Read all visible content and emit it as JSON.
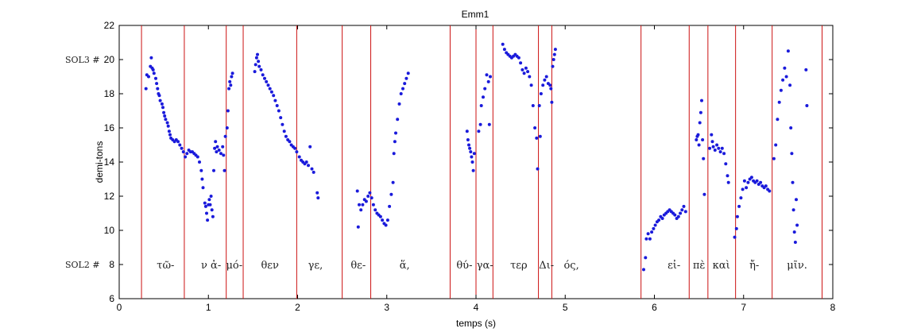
{
  "chart_data": {
    "type": "scatter",
    "title": "Emm1",
    "xlabel": "temps (s)",
    "ylabel": "demi-tons",
    "xlim": [
      0,
      8
    ],
    "ylim": [
      6,
      22
    ],
    "xticks": [
      0,
      1,
      2,
      3,
      4,
      5,
      6,
      7,
      8
    ],
    "yticks": [
      6,
      8,
      10,
      12,
      14,
      16,
      18,
      20,
      22
    ],
    "grid": false,
    "point_color": "#1a1adb",
    "line_color": "#cc1111",
    "note_markers": [
      {
        "label": "SOL3 #",
        "y": 20.0
      },
      {
        "label": "SOL2 #",
        "y": 8.0
      }
    ],
    "boundaries": [
      0.25,
      0.73,
      1.2,
      1.39,
      1.99,
      2.5,
      2.82,
      3.71,
      4.0,
      4.19,
      4.7,
      4.85,
      5.85,
      6.39,
      6.6,
      6.91,
      7.32,
      7.88
    ],
    "syllables": [
      {
        "text": "τῶ-",
        "x": 0.52
      },
      {
        "text": "ν ἀ-",
        "x": 1.03
      },
      {
        "text": "μό-",
        "x": 1.29
      },
      {
        "text": "θεν",
        "x": 1.69
      },
      {
        "text": "γε,",
        "x": 2.2
      },
      {
        "text": "θε-",
        "x": 2.68
      },
      {
        "text": "ἅ,",
        "x": 3.2
      },
      {
        "text": "θύ-",
        "x": 3.87
      },
      {
        "text": "γα-",
        "x": 4.1
      },
      {
        "text": "τερ",
        "x": 4.48
      },
      {
        "text": "Δι-",
        "x": 4.79
      },
      {
        "text": "ός,",
        "x": 5.07
      },
      {
        "text": "εἰ-",
        "x": 6.22
      },
      {
        "text": "πὲ",
        "x": 6.5
      },
      {
        "text": "καὶ",
        "x": 6.75
      },
      {
        "text": "ἤ-",
        "x": 7.12
      },
      {
        "text": "μῖν.",
        "x": 7.6
      }
    ],
    "series": [
      {
        "points": [
          [
            0.3,
            18.3
          ],
          [
            0.31,
            19.1
          ],
          [
            0.33,
            19.0
          ],
          [
            0.35,
            19.6
          ],
          [
            0.36,
            20.1
          ],
          [
            0.37,
            19.5
          ],
          [
            0.38,
            19.4
          ],
          [
            0.39,
            19.2
          ],
          [
            0.41,
            18.9
          ],
          [
            0.42,
            18.6
          ],
          [
            0.43,
            18.3
          ],
          [
            0.44,
            18.0
          ],
          [
            0.45,
            17.9
          ],
          [
            0.46,
            17.6
          ],
          [
            0.48,
            17.4
          ],
          [
            0.49,
            17.2
          ],
          [
            0.5,
            16.9
          ],
          [
            0.51,
            16.7
          ],
          [
            0.52,
            16.5
          ],
          [
            0.54,
            16.3
          ],
          [
            0.55,
            16.1
          ],
          [
            0.56,
            15.8
          ],
          [
            0.57,
            15.6
          ],
          [
            0.58,
            15.4
          ],
          [
            0.6,
            15.3
          ],
          [
            0.62,
            15.2
          ],
          [
            0.64,
            15.3
          ],
          [
            0.66,
            15.2
          ],
          [
            0.68,
            15.0
          ],
          [
            0.7,
            14.8
          ],
          [
            0.72,
            14.6
          ],
          [
            0.74,
            14.3
          ],
          [
            0.76,
            14.5
          ],
          [
            0.78,
            14.7
          ],
          [
            0.8,
            14.6
          ],
          [
            0.82,
            14.6
          ],
          [
            0.84,
            14.5
          ],
          [
            0.86,
            14.4
          ],
          [
            0.88,
            14.3
          ],
          [
            0.9,
            14.0
          ],
          [
            0.92,
            13.5
          ],
          [
            0.93,
            13.0
          ],
          [
            0.94,
            12.5
          ]
        ]
      },
      {
        "points": [
          [
            0.96,
            11.6
          ],
          [
            0.97,
            11.4
          ],
          [
            0.98,
            11.0
          ],
          [
            0.99,
            10.6
          ],
          [
            1.0,
            11.5
          ],
          [
            1.01,
            11.8
          ],
          [
            1.02,
            11.5
          ],
          [
            1.03,
            12.0
          ],
          [
            1.04,
            11.2
          ],
          [
            1.05,
            10.8
          ],
          [
            1.06,
            13.5
          ],
          [
            1.07,
            14.8
          ],
          [
            1.08,
            15.2
          ],
          [
            1.09,
            14.6
          ],
          [
            1.1,
            14.9
          ],
          [
            1.12,
            14.7
          ],
          [
            1.14,
            14.5
          ],
          [
            1.16,
            14.9
          ],
          [
            1.17,
            14.4
          ],
          [
            1.18,
            13.5
          ],
          [
            1.19,
            15.5
          ]
        ]
      },
      {
        "points": [
          [
            1.21,
            16.0
          ],
          [
            1.22,
            17.0
          ],
          [
            1.23,
            18.3
          ],
          [
            1.24,
            18.7
          ],
          [
            1.25,
            18.5
          ],
          [
            1.26,
            19.0
          ],
          [
            1.27,
            19.2
          ]
        ]
      },
      {
        "points": [
          [
            1.52,
            19.3
          ],
          [
            1.53,
            19.7
          ],
          [
            1.54,
            20.1
          ],
          [
            1.55,
            20.3
          ],
          [
            1.56,
            19.9
          ],
          [
            1.57,
            19.6
          ],
          [
            1.59,
            19.4
          ],
          [
            1.61,
            19.1
          ],
          [
            1.63,
            18.9
          ],
          [
            1.65,
            18.7
          ],
          [
            1.67,
            18.5
          ],
          [
            1.69,
            18.3
          ],
          [
            1.71,
            18.1
          ],
          [
            1.73,
            17.9
          ],
          [
            1.75,
            17.6
          ],
          [
            1.77,
            17.3
          ],
          [
            1.79,
            17.0
          ],
          [
            1.81,
            16.6
          ],
          [
            1.83,
            16.2
          ],
          [
            1.85,
            15.8
          ],
          [
            1.87,
            15.5
          ],
          [
            1.89,
            15.3
          ],
          [
            1.91,
            15.2
          ],
          [
            1.93,
            15.0
          ],
          [
            1.95,
            14.9
          ],
          [
            1.97,
            14.8
          ],
          [
            1.99,
            14.6
          ],
          [
            2.02,
            14.3
          ],
          [
            2.04,
            14.1
          ],
          [
            2.06,
            14.0
          ],
          [
            2.08,
            13.9
          ],
          [
            2.1,
            14.0
          ],
          [
            2.12,
            13.8
          ],
          [
            2.14,
            14.9
          ],
          [
            2.16,
            13.6
          ],
          [
            2.18,
            13.4
          ],
          [
            2.22,
            12.2
          ],
          [
            2.23,
            11.9
          ]
        ]
      },
      {
        "points": [
          [
            2.67,
            12.3
          ],
          [
            2.68,
            10.2
          ],
          [
            2.69,
            11.5
          ],
          [
            2.71,
            11.2
          ],
          [
            2.73,
            11.5
          ],
          [
            2.75,
            11.8
          ],
          [
            2.77,
            11.7
          ],
          [
            2.79,
            12.0
          ],
          [
            2.81,
            12.2
          ],
          [
            2.83,
            11.9
          ],
          [
            2.85,
            11.5
          ],
          [
            2.87,
            11.2
          ],
          [
            2.89,
            11.0
          ],
          [
            2.91,
            10.9
          ],
          [
            2.93,
            10.8
          ],
          [
            2.95,
            10.6
          ],
          [
            2.97,
            10.4
          ],
          [
            2.99,
            10.3
          ],
          [
            3.01,
            10.6
          ],
          [
            3.03,
            11.4
          ],
          [
            3.05,
            12.1
          ],
          [
            3.07,
            12.8
          ],
          [
            3.08,
            14.5
          ],
          [
            3.09,
            15.2
          ],
          [
            3.1,
            15.7
          ],
          [
            3.12,
            16.5
          ],
          [
            3.14,
            17.4
          ],
          [
            3.16,
            18.0
          ],
          [
            3.18,
            18.3
          ],
          [
            3.2,
            18.6
          ],
          [
            3.22,
            18.9
          ],
          [
            3.24,
            19.2
          ]
        ]
      },
      {
        "points": [
          [
            3.9,
            15.8
          ],
          [
            3.91,
            15.3
          ],
          [
            3.92,
            15.0
          ],
          [
            3.93,
            14.8
          ],
          [
            3.94,
            14.6
          ],
          [
            3.95,
            14.3
          ],
          [
            3.96,
            14.0
          ],
          [
            3.97,
            13.5
          ],
          [
            3.98,
            14.5
          ],
          [
            4.03,
            15.8
          ],
          [
            4.05,
            16.2
          ],
          [
            4.06,
            17.3
          ],
          [
            4.08,
            17.8
          ],
          [
            4.1,
            18.3
          ],
          [
            4.12,
            19.1
          ],
          [
            4.14,
            18.7
          ],
          [
            4.15,
            16.2
          ],
          [
            4.16,
            19.0
          ]
        ]
      },
      {
        "points": [
          [
            4.3,
            20.9
          ],
          [
            4.32,
            20.6
          ],
          [
            4.34,
            20.4
          ],
          [
            4.36,
            20.3
          ],
          [
            4.38,
            20.2
          ],
          [
            4.4,
            20.1
          ],
          [
            4.42,
            20.2
          ],
          [
            4.44,
            20.3
          ],
          [
            4.46,
            20.2
          ],
          [
            4.48,
            20.1
          ],
          [
            4.5,
            19.8
          ],
          [
            4.52,
            19.4
          ],
          [
            4.54,
            19.2
          ],
          [
            4.56,
            19.5
          ],
          [
            4.58,
            19.3
          ],
          [
            4.6,
            19.0
          ],
          [
            4.62,
            18.5
          ],
          [
            4.64,
            17.3
          ],
          [
            4.66,
            16.0
          ],
          [
            4.68,
            15.4
          ],
          [
            4.69,
            13.6
          ]
        ]
      },
      {
        "points": [
          [
            4.71,
            17.3
          ],
          [
            4.72,
            15.5
          ],
          [
            4.73,
            18.0
          ],
          [
            4.75,
            18.5
          ],
          [
            4.77,
            18.8
          ],
          [
            4.79,
            19.0
          ],
          [
            4.81,
            18.6
          ],
          [
            4.83,
            18.5
          ],
          [
            4.84,
            18.3
          ],
          [
            4.85,
            17.5
          ],
          [
            4.86,
            19.6
          ],
          [
            4.87,
            20.0
          ],
          [
            4.88,
            20.3
          ],
          [
            4.89,
            20.6
          ]
        ]
      },
      {
        "points": [
          [
            5.88,
            7.7
          ],
          [
            5.9,
            8.4
          ],
          [
            5.91,
            9.5
          ],
          [
            5.93,
            9.8
          ],
          [
            5.95,
            9.5
          ],
          [
            5.97,
            9.9
          ],
          [
            5.99,
            10.1
          ],
          [
            6.01,
            10.3
          ],
          [
            6.03,
            10.5
          ],
          [
            6.05,
            10.6
          ],
          [
            6.07,
            10.8
          ],
          [
            6.09,
            10.7
          ],
          [
            6.11,
            10.9
          ],
          [
            6.13,
            11.0
          ],
          [
            6.15,
            11.1
          ],
          [
            6.17,
            11.2
          ],
          [
            6.19,
            11.1
          ],
          [
            6.21,
            11.0
          ],
          [
            6.23,
            10.9
          ],
          [
            6.25,
            10.7
          ],
          [
            6.27,
            10.8
          ],
          [
            6.29,
            11.0
          ],
          [
            6.31,
            11.2
          ],
          [
            6.33,
            11.4
          ],
          [
            6.35,
            11.1
          ]
        ]
      },
      {
        "points": [
          [
            6.47,
            15.3
          ],
          [
            6.48,
            15.5
          ],
          [
            6.49,
            15.6
          ],
          [
            6.5,
            15.0
          ],
          [
            6.51,
            16.3
          ],
          [
            6.52,
            16.9
          ],
          [
            6.53,
            17.6
          ],
          [
            6.54,
            15.3
          ],
          [
            6.55,
            14.2
          ],
          [
            6.56,
            12.1
          ],
          [
            6.62,
            14.8
          ],
          [
            6.64,
            15.6
          ],
          [
            6.65,
            15.2
          ],
          [
            6.66,
            14.9
          ],
          [
            6.68,
            14.7
          ],
          [
            6.7,
            15.0
          ],
          [
            6.72,
            14.8
          ],
          [
            6.74,
            14.6
          ],
          [
            6.76,
            14.8
          ],
          [
            6.78,
            14.5
          ],
          [
            6.8,
            13.9
          ],
          [
            6.82,
            13.2
          ],
          [
            6.83,
            12.8
          ]
        ]
      },
      {
        "points": [
          [
            6.9,
            9.6
          ],
          [
            6.92,
            10.1
          ],
          [
            6.93,
            10.8
          ],
          [
            6.95,
            11.4
          ],
          [
            6.97,
            11.9
          ],
          [
            6.99,
            12.4
          ],
          [
            7.01,
            12.9
          ],
          [
            7.03,
            12.5
          ],
          [
            7.05,
            12.8
          ],
          [
            7.07,
            13.0
          ],
          [
            7.09,
            13.1
          ],
          [
            7.11,
            12.9
          ],
          [
            7.13,
            12.8
          ],
          [
            7.15,
            12.9
          ],
          [
            7.17,
            12.7
          ],
          [
            7.19,
            12.8
          ],
          [
            7.21,
            12.6
          ],
          [
            7.23,
            12.5
          ],
          [
            7.25,
            12.6
          ],
          [
            7.27,
            12.4
          ],
          [
            7.29,
            12.3
          ]
        ]
      },
      {
        "points": [
          [
            7.34,
            14.2
          ],
          [
            7.36,
            15.0
          ],
          [
            7.38,
            16.5
          ],
          [
            7.4,
            17.5
          ],
          [
            7.42,
            18.2
          ],
          [
            7.44,
            18.8
          ],
          [
            7.46,
            19.5
          ],
          [
            7.48,
            19.0
          ],
          [
            7.5,
            20.5
          ],
          [
            7.52,
            18.5
          ],
          [
            7.53,
            16.0
          ],
          [
            7.54,
            14.5
          ],
          [
            7.55,
            12.8
          ],
          [
            7.56,
            11.2
          ],
          [
            7.57,
            9.9
          ],
          [
            7.58,
            9.3
          ],
          [
            7.59,
            11.8
          ],
          [
            7.6,
            10.3
          ],
          [
            7.7,
            19.4
          ],
          [
            7.71,
            17.3
          ]
        ]
      }
    ]
  }
}
